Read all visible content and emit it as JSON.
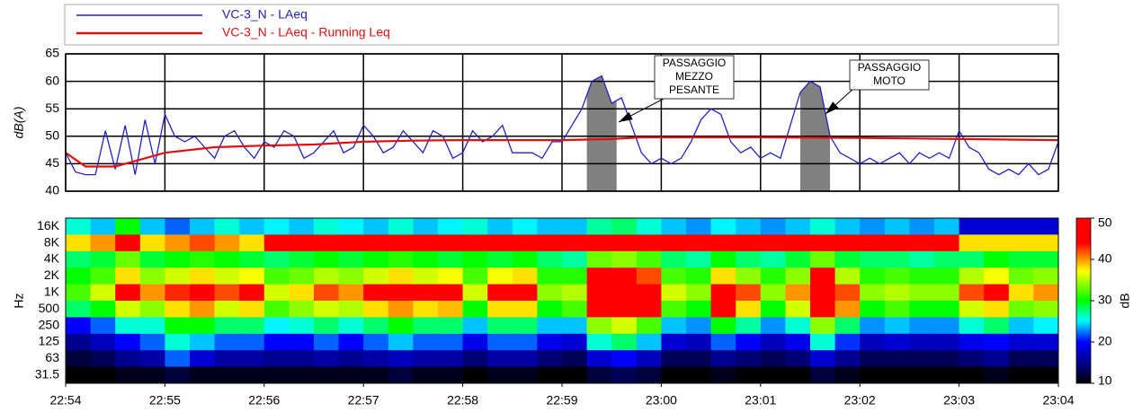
{
  "chart_data": [
    {
      "type": "line",
      "ylabel": "dB(A)",
      "xlim": [
        1374,
        1384
      ],
      "xticks": [
        1374,
        1375,
        1376,
        1377,
        1378,
        1379,
        1380,
        1381,
        1382,
        1383,
        1384
      ],
      "ylim": [
        40,
        65
      ],
      "yticks": [
        40,
        45,
        50,
        55,
        60,
        65
      ],
      "grid": true,
      "series": [
        {
          "name": "VC-3_N - LAeq",
          "color": "#2222bb",
          "x": [
            1374.0,
            1374.1,
            1374.2,
            1374.3,
            1374.4,
            1374.5,
            1374.6,
            1374.7,
            1374.8,
            1374.9,
            1375.0,
            1375.1,
            1375.2,
            1375.3,
            1375.4,
            1375.5,
            1375.6,
            1375.7,
            1375.8,
            1375.9,
            1376.0,
            1376.1,
            1376.2,
            1376.3,
            1376.4,
            1376.5,
            1376.6,
            1376.7,
            1376.8,
            1376.9,
            1377.0,
            1377.1,
            1377.2,
            1377.3,
            1377.4,
            1377.5,
            1377.6,
            1377.7,
            1377.8,
            1377.9,
            1378.0,
            1378.1,
            1378.2,
            1378.3,
            1378.4,
            1378.5,
            1378.6,
            1378.7,
            1378.8,
            1378.9,
            1379.0,
            1379.1,
            1379.2,
            1379.3,
            1379.4,
            1379.5,
            1379.6,
            1379.7,
            1379.8,
            1379.9,
            1380.0,
            1380.1,
            1380.2,
            1380.3,
            1380.4,
            1380.5,
            1380.6,
            1380.7,
            1380.8,
            1380.9,
            1381.0,
            1381.1,
            1381.2,
            1381.3,
            1381.4,
            1381.5,
            1381.6,
            1381.7,
            1381.8,
            1381.9,
            1382.0,
            1382.1,
            1382.2,
            1382.3,
            1382.4,
            1382.5,
            1382.6,
            1382.7,
            1382.8,
            1382.9,
            1383.0,
            1383.1,
            1383.2,
            1383.3,
            1383.4,
            1383.5,
            1383.6,
            1383.7,
            1383.8,
            1383.9,
            1384.0
          ],
          "values": [
            47,
            43.5,
            43,
            43,
            51,
            44,
            52,
            43,
            53,
            45,
            54,
            50,
            49,
            50,
            48,
            46,
            50,
            51,
            48,
            46,
            49,
            48,
            51,
            50,
            46,
            47,
            49,
            51,
            47,
            48,
            52,
            50,
            47,
            48,
            51,
            49,
            47,
            51,
            50,
            46,
            47,
            51,
            49,
            50,
            52,
            47,
            47,
            47,
            46,
            49,
            49,
            52,
            55,
            60,
            61,
            56,
            57,
            52,
            47,
            45,
            46,
            45,
            46,
            49,
            53,
            55,
            54,
            49,
            47,
            48,
            46,
            47,
            46,
            52,
            58,
            60,
            59,
            50,
            47,
            46,
            45,
            46,
            45,
            46,
            47,
            45,
            47,
            46,
            47,
            46,
            51,
            48,
            47,
            44,
            43,
            44,
            43,
            45,
            43,
            44,
            49
          ]
        },
        {
          "name": "VC-3_N - LAeq - Running Leq",
          "color": "#dd1111",
          "x": [
            1374,
            1374.2,
            1374.5,
            1375,
            1375.5,
            1376,
            1376.5,
            1377,
            1377.5,
            1378,
            1378.5,
            1379,
            1379.5,
            1379.8,
            1380,
            1381,
            1382,
            1383,
            1384
          ],
          "values": [
            47,
            44.5,
            44.5,
            47,
            48,
            48.3,
            48.5,
            49,
            49.2,
            49.3,
            49.3,
            49.3,
            49.5,
            49.8,
            49.8,
            49.8,
            49.7,
            49.5,
            49.3
          ]
        }
      ],
      "events": [
        {
          "label": [
            "PASSAGGIO",
            "MEZZO",
            "PESANTE"
          ],
          "start": 1379.25,
          "end": 1379.55,
          "color": "#808080"
        },
        {
          "label": [
            "PASSAGGIO",
            "MOTO"
          ],
          "start": 1381.4,
          "end": 1381.7,
          "color": "#808080"
        }
      ]
    },
    {
      "type": "heatmap",
      "ylabel": "Hz",
      "xlim": [
        1374,
        1384
      ],
      "xticks": [
        {
          "value": 1374,
          "label": "22:54"
        },
        {
          "value": 1375,
          "label": "22:55"
        },
        {
          "value": 1376,
          "label": "22:56"
        },
        {
          "value": 1377,
          "label": "22:57"
        },
        {
          "value": 1378,
          "label": "22:58"
        },
        {
          "value": 1379,
          "label": "22:59"
        },
        {
          "value": 1380,
          "label": "23:00"
        },
        {
          "value": 1381,
          "label": "23:01"
        },
        {
          "value": 1382,
          "label": "23:02"
        },
        {
          "value": 1383,
          "label": "23:03"
        },
        {
          "value": 1384,
          "label": "23:04"
        }
      ],
      "x": [
        1374,
        1374.25,
        1374.5,
        1374.75,
        1375,
        1375.25,
        1375.5,
        1375.75,
        1376,
        1376.25,
        1376.5,
        1376.75,
        1377,
        1377.25,
        1377.5,
        1377.75,
        1378,
        1378.25,
        1378.5,
        1378.75,
        1379,
        1379.25,
        1379.5,
        1379.75,
        1380,
        1380.25,
        1380.5,
        1380.75,
        1381,
        1381.25,
        1381.5,
        1381.75,
        1382,
        1382.25,
        1382.5,
        1382.75,
        1383,
        1383.25,
        1383.5,
        1383.75
      ],
      "bands": [
        "16K",
        "8K",
        "4K",
        "2K",
        "1K",
        "500",
        "250",
        "125",
        "63",
        "31.5"
      ],
      "values": [
        [
          26,
          24,
          30,
          24,
          22,
          24,
          26,
          24,
          25,
          24,
          26,
          25,
          24,
          26,
          24,
          25,
          26,
          24,
          25,
          24,
          24,
          27,
          28,
          26,
          24,
          23,
          25,
          24,
          23,
          24,
          26,
          24,
          23,
          24,
          23,
          24,
          18,
          18,
          18,
          18
        ],
        [
          38,
          40,
          45,
          38,
          40,
          42,
          40,
          38,
          47,
          48,
          48,
          47,
          48,
          48,
          47,
          48,
          48,
          47,
          48,
          48,
          47,
          48,
          49,
          48,
          47,
          48,
          48,
          47,
          48,
          48,
          49,
          48,
          47,
          48,
          47,
          48,
          38,
          38,
          38,
          38
        ],
        [
          28,
          29,
          33,
          29,
          30,
          31,
          30,
          29,
          28,
          29,
          30,
          29,
          30,
          31,
          30,
          29,
          30,
          29,
          30,
          28,
          27,
          33,
          34,
          32,
          28,
          27,
          30,
          28,
          27,
          29,
          33,
          29,
          28,
          28,
          27,
          28,
          28,
          30,
          29,
          29
        ],
        [
          30,
          32,
          38,
          34,
          36,
          38,
          36,
          37,
          32,
          33,
          35,
          34,
          36,
          38,
          36,
          37,
          32,
          37,
          38,
          31,
          31,
          44,
          46,
          42,
          32,
          31,
          38,
          34,
          31,
          34,
          44,
          35,
          31,
          32,
          31,
          31,
          35,
          37,
          33,
          34
        ],
        [
          32,
          36,
          44,
          40,
          43,
          46,
          42,
          45,
          36,
          38,
          42,
          40,
          44,
          46,
          44,
          45,
          36,
          46,
          45,
          34,
          35,
          50,
          50,
          48,
          36,
          34,
          48,
          42,
          34,
          40,
          50,
          42,
          34,
          35,
          34,
          34,
          42,
          46,
          38,
          40
        ],
        [
          28,
          30,
          36,
          34,
          38,
          40,
          36,
          38,
          32,
          34,
          36,
          35,
          38,
          40,
          38,
          39,
          30,
          38,
          38,
          30,
          32,
          50,
          50,
          46,
          32,
          30,
          44,
          38,
          30,
          36,
          50,
          40,
          30,
          32,
          30,
          30,
          36,
          38,
          33,
          34
        ],
        [
          20,
          22,
          26,
          26,
          30,
          30,
          28,
          28,
          25,
          26,
          28,
          26,
          28,
          30,
          28,
          28,
          24,
          28,
          28,
          24,
          24,
          34,
          36,
          32,
          24,
          23,
          30,
          27,
          23,
          26,
          34,
          28,
          23,
          24,
          23,
          23,
          26,
          28,
          24,
          25
        ],
        [
          15,
          17,
          20,
          22,
          26,
          24,
          22,
          22,
          20,
          20,
          22,
          20,
          22,
          24,
          22,
          22,
          19,
          22,
          22,
          19,
          18,
          26,
          28,
          24,
          18,
          17,
          22,
          20,
          17,
          19,
          26,
          21,
          17,
          18,
          17,
          17,
          19,
          20,
          18,
          18
        ],
        [
          12,
          13,
          15,
          16,
          22,
          18,
          16,
          16,
          15,
          15,
          16,
          15,
          16,
          17,
          16,
          16,
          14,
          16,
          16,
          14,
          13,
          18,
          20,
          17,
          13,
          13,
          15,
          14,
          13,
          14,
          18,
          15,
          13,
          13,
          13,
          13,
          14,
          15,
          13,
          13
        ],
        [
          10,
          10,
          11,
          11,
          12,
          11,
          11,
          11,
          11,
          11,
          11,
          11,
          11,
          12,
          11,
          11,
          10,
          11,
          11,
          10,
          10,
          12,
          13,
          12,
          10,
          10,
          11,
          10,
          10,
          10,
          12,
          11,
          10,
          10,
          10,
          10,
          10,
          11,
          10,
          10
        ]
      ],
      "zlim": [
        10,
        50
      ],
      "zticks": [
        10,
        20,
        30,
        40,
        50
      ],
      "zlabel": "dB"
    }
  ]
}
